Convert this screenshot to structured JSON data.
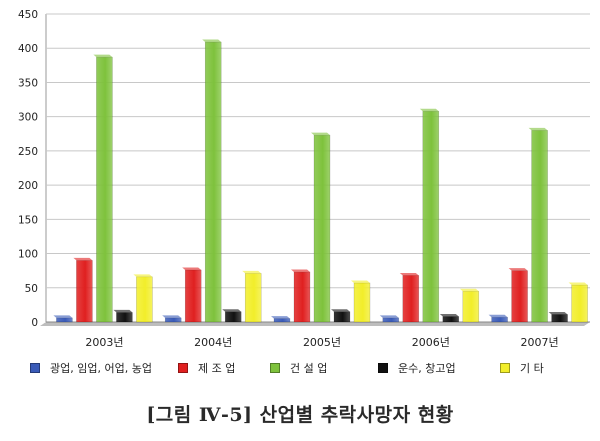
{
  "chart_data": {
    "type": "bar",
    "title": "",
    "xlabel": "",
    "ylabel": "",
    "ylim": [
      0,
      450
    ],
    "yticks": [
      0,
      50,
      100,
      150,
      200,
      250,
      300,
      350,
      400,
      450
    ],
    "grid": true,
    "legend_position": "bottom",
    "categories": [
      "2003년",
      "2004년",
      "2005년",
      "2006년",
      "2007년"
    ],
    "series": [
      {
        "name": "광업, 임업, 어업, 농업",
        "color": "#3a5bb8",
        "values": [
          6,
          6,
          5,
          6,
          7
        ]
      },
      {
        "name": "제 조 업",
        "color": "#e02020",
        "values": [
          90,
          76,
          73,
          68,
          75
        ]
      },
      {
        "name": "건 설 업",
        "color": "#7ec23c",
        "values": [
          387,
          409,
          273,
          308,
          280
        ]
      },
      {
        "name": "운수, 창고업",
        "color": "#111111",
        "values": [
          14,
          15,
          15,
          8,
          11
        ]
      },
      {
        "name": "기    타",
        "color": "#f2ee2a",
        "values": [
          66,
          71,
          57,
          45,
          54
        ]
      }
    ]
  },
  "caption": "[그림 Ⅳ-5] 산업별 추락사망자 현황"
}
